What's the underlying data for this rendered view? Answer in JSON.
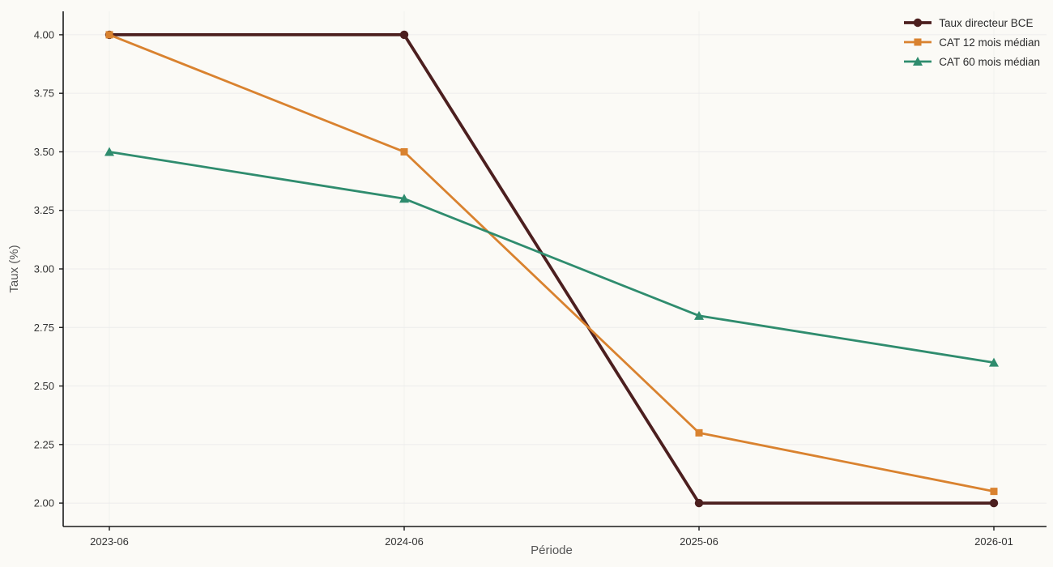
{
  "chart_data": {
    "type": "line",
    "title": "",
    "xlabel": "Période",
    "ylabel": "Taux (%)",
    "categories": [
      "2023-06",
      "2024-06",
      "2025-06",
      "2026-01"
    ],
    "series": [
      {
        "name": "Taux directeur BCE",
        "color": "#4c1f1f",
        "marker": "circle",
        "linewidth": 3.8,
        "values": [
          4.0,
          4.0,
          2.0,
          2.0
        ]
      },
      {
        "name": "CAT 12 mois médian",
        "color": "#d9822f",
        "marker": "square",
        "linewidth": 2.8,
        "values": [
          4.0,
          3.5,
          2.3,
          2.05
        ]
      },
      {
        "name": "CAT 60 mois médian",
        "color": "#2f8c6e",
        "marker": "triangle",
        "linewidth": 2.8,
        "values": [
          3.5,
          3.3,
          2.8,
          2.6
        ]
      }
    ],
    "y_ticks": [
      2.0,
      2.25,
      2.5,
      2.75,
      3.0,
      3.25,
      3.5,
      3.75,
      4.0
    ],
    "y_tick_labels": [
      "2.00",
      "2.25",
      "2.50",
      "2.75",
      "3.00",
      "3.25",
      "3.50",
      "3.75",
      "4.00"
    ],
    "ylim": [
      1.9,
      4.1
    ],
    "grid": true,
    "legend_position": "top-right",
    "colors": {
      "background": "#fbfaf6",
      "grid": "#ececec",
      "spine": "#1a1a1a",
      "tick_text": "#333333",
      "axis_title_text": "#555555"
    }
  }
}
